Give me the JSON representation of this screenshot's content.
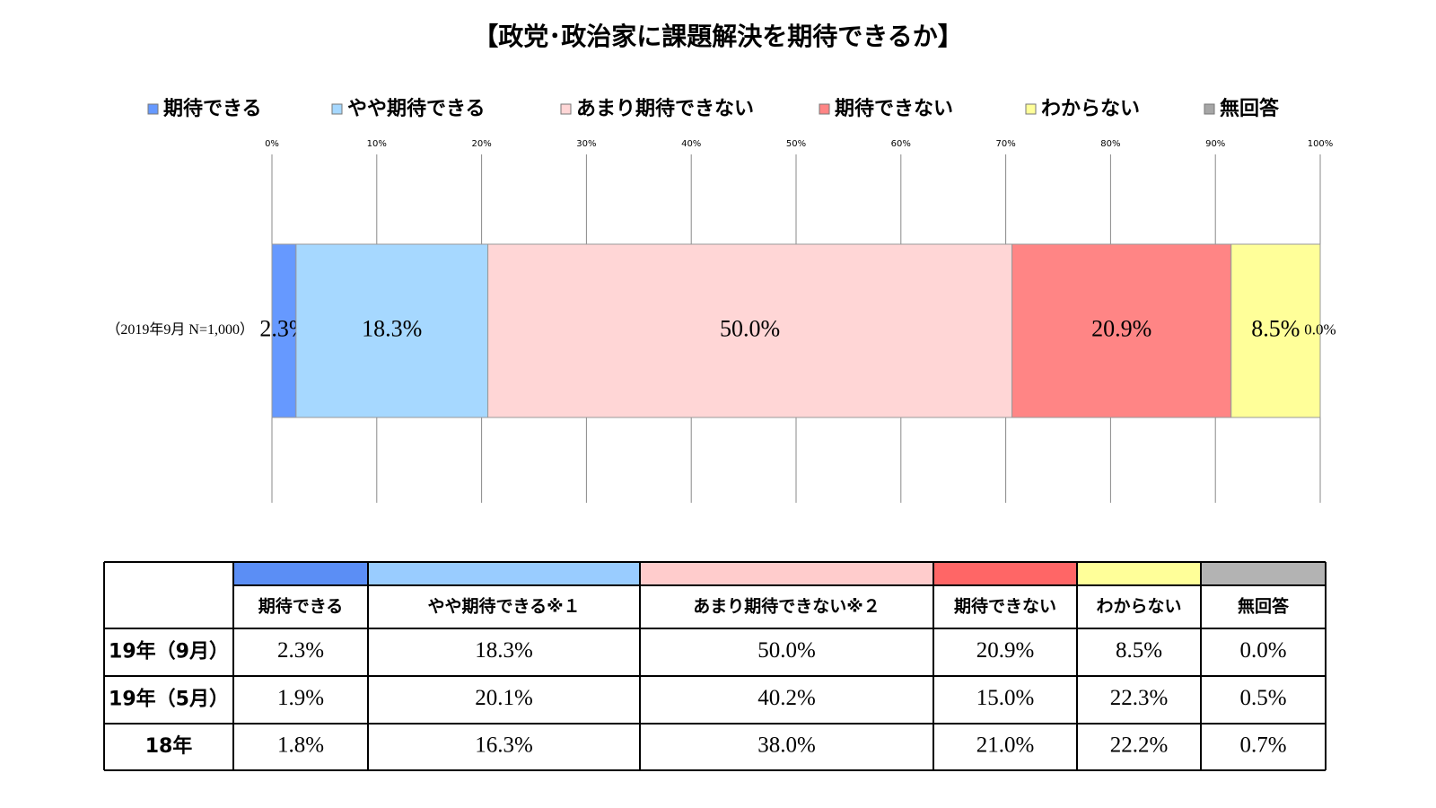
{
  "chart_data": {
    "type": "stacked_bar_horizontal",
    "title": "【政党･政治家に課題解決を期待できるか】",
    "categories": [
      "（2019年9月 N=1,000）"
    ],
    "series": [
      {
        "name": "期待できる",
        "color": "#6699ff",
        "values": [
          2.3
        ],
        "value_labels": [
          "2.3%"
        ]
      },
      {
        "name": "やや期待できる",
        "color": "#a6d8ff",
        "values": [
          18.3
        ],
        "value_labels": [
          "18.3%"
        ]
      },
      {
        "name": "あまり期待できない",
        "color": "#ffd6d6",
        "values": [
          50.0
        ],
        "value_labels": [
          "50.0%"
        ]
      },
      {
        "name": "期待できない",
        "color": "#ff8585",
        "values": [
          20.9
        ],
        "value_labels": [
          "20.9%"
        ]
      },
      {
        "name": "わからない",
        "color": "#ffff99",
        "values": [
          8.5
        ],
        "value_labels": [
          "8.5%"
        ]
      },
      {
        "name": "無回答",
        "color": "#a6a6a6",
        "values": [
          0.0
        ],
        "value_labels": [
          "0.0%"
        ]
      }
    ],
    "xlim": [
      0,
      100
    ],
    "xticks": [
      {
        "value": 0,
        "label": "0%"
      },
      {
        "value": 10,
        "label": "10%"
      },
      {
        "value": 20,
        "label": "20%"
      },
      {
        "value": 30,
        "label": "30%"
      },
      {
        "value": 40,
        "label": "40%"
      },
      {
        "value": 50,
        "label": "50%"
      },
      {
        "value": 60,
        "label": "60%"
      },
      {
        "value": 70,
        "label": "70%"
      },
      {
        "value": 80,
        "label": "80%"
      },
      {
        "value": 90,
        "label": "90%"
      },
      {
        "value": 100,
        "label": "100%"
      }
    ],
    "grid": true,
    "legend": "top"
  },
  "table": {
    "colors": [
      "#5b8ef5",
      "#99ccff",
      "#ffcccc",
      "#ff6666",
      "#ffff99",
      "#b3b3b3"
    ],
    "header": [
      "期待できる",
      "やや期待できる※１",
      "あまり期待できない※２",
      "期待できない",
      "わからない",
      "無回答"
    ],
    "rows": [
      [
        "19年（9月）",
        "2.3%",
        "18.3%",
        "50.0%",
        "20.9%",
        "8.5%",
        "0.0%"
      ],
      [
        "19年（5月）",
        "1.9%",
        "20.1%",
        "40.2%",
        "15.0%",
        "22.3%",
        "0.5%"
      ],
      [
        "18年",
        "1.8%",
        "16.3%",
        "38.0%",
        "21.0%",
        "22.2%",
        "0.7%"
      ]
    ]
  }
}
